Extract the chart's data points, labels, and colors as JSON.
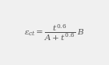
{
  "formula": "$\\varepsilon_{ct} = \\dfrac{t^{0.6}}{A + t^{0.6}}\\ B$",
  "background_color": "#f0f0f0",
  "text_color": "#555555",
  "fontsize": 7.5,
  "fig_width": 1.36,
  "fig_height": 0.81,
  "dpi": 100
}
